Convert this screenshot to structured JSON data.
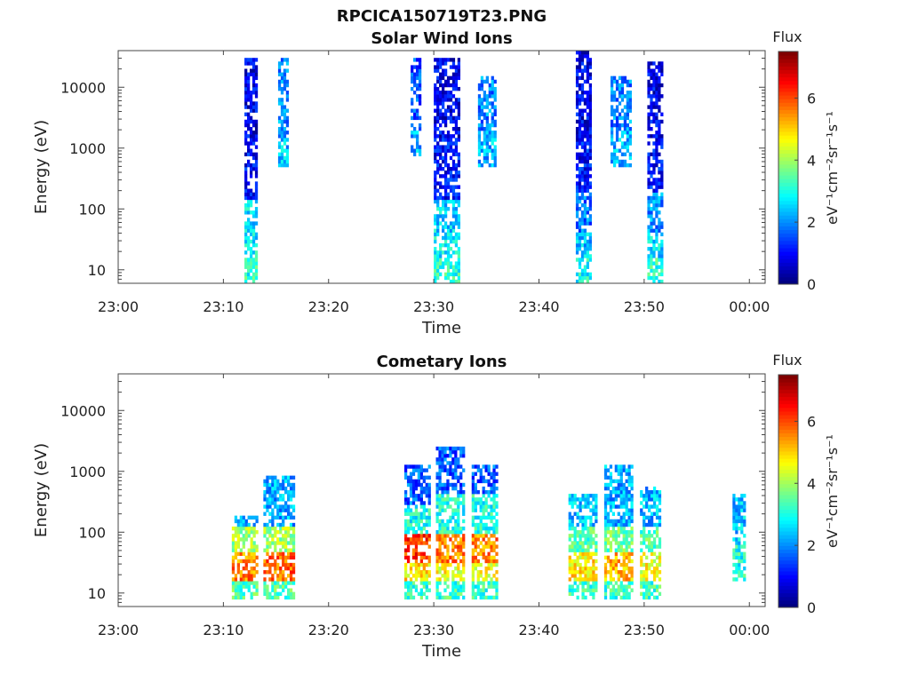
{
  "figure": {
    "title": "RPCICA150719T23.PNG"
  },
  "chart_data": [
    {
      "type": "heatmap",
      "title": "Solar Wind Ions",
      "xlabel": "Time",
      "ylabel": "Energy (eV)",
      "x_ticks": [
        "23:00",
        "23:10",
        "23:20",
        "23:30",
        "23:40",
        "23:50",
        "00:00"
      ],
      "x_range_minutes": [
        0,
        61.5
      ],
      "y_scale": "log",
      "y_ticks": [
        "10",
        "100",
        "1000",
        "10000"
      ],
      "ylim": [
        6,
        40000
      ],
      "colorbar": {
        "title": "Flux",
        "label": "eV⁻¹cm⁻²sr⁻¹s⁻¹",
        "ticks": [
          "0",
          "2",
          "4",
          "6"
        ],
        "range": [
          0,
          7.5
        ],
        "colormap": "jet"
      },
      "bursts": [
        {
          "t": [
            12.0,
            13.2
          ],
          "levels": [
            [
              6,
              15,
              3.1
            ],
            [
              15,
              30,
              2.8
            ],
            [
              30,
              150,
              2.6
            ],
            [
              150,
              1500,
              1.0
            ],
            [
              1500,
              30000,
              0.8
            ]
          ]
        },
        {
          "t": [
            15.2,
            16.2
          ],
          "levels": [
            [
              500,
              1500,
              2.4
            ],
            [
              1500,
              30000,
              1.9
            ]
          ]
        },
        {
          "t": [
            27.8,
            28.8
          ],
          "levels": [
            [
              700,
              2000,
              2.3
            ],
            [
              2000,
              30000,
              1.5
            ]
          ]
        },
        {
          "t": [
            30.0,
            32.4
          ],
          "levels": [
            [
              6,
              15,
              3.1
            ],
            [
              15,
              40,
              2.8
            ],
            [
              40,
              150,
              2.6
            ],
            [
              150,
              1500,
              1.0
            ],
            [
              1500,
              30000,
              0.8
            ]
          ]
        },
        {
          "t": [
            34.2,
            35.8
          ],
          "levels": [
            [
              500,
              2000,
              2.3
            ],
            [
              2000,
              15000,
              1.9
            ]
          ]
        },
        {
          "t": [
            43.5,
            45.0
          ],
          "levels": [
            [
              6,
              15,
              2.9
            ],
            [
              15,
              40,
              2.4
            ],
            [
              40,
              200,
              1.8
            ],
            [
              200,
              1500,
              1.0
            ],
            [
              1500,
              40000,
              0.8
            ]
          ]
        },
        {
          "t": [
            46.8,
            48.8
          ],
          "levels": [
            [
              500,
              2000,
              2.3
            ],
            [
              2000,
              15000,
              1.9
            ]
          ]
        },
        {
          "t": [
            50.3,
            51.8
          ],
          "levels": [
            [
              6,
              15,
              3.1
            ],
            [
              15,
              40,
              2.6
            ],
            [
              40,
              200,
              2.0
            ],
            [
              200,
              1500,
              1.0
            ],
            [
              1500,
              25000,
              0.8
            ]
          ]
        }
      ]
    },
    {
      "type": "heatmap",
      "title": "Cometary Ions",
      "xlabel": "Time",
      "ylabel": "Energy (eV)",
      "x_ticks": [
        "23:00",
        "23:10",
        "23:20",
        "23:30",
        "23:40",
        "23:50",
        "00:00"
      ],
      "x_range_minutes": [
        0,
        61.5
      ],
      "y_scale": "log",
      "y_ticks": [
        "10",
        "100",
        "1000",
        "10000"
      ],
      "ylim": [
        6,
        40000
      ],
      "colorbar": {
        "title": "Flux",
        "label": "eV⁻¹cm⁻²sr⁻¹s⁻¹",
        "ticks": [
          "0",
          "2",
          "4",
          "6"
        ],
        "range": [
          0,
          7.5
        ],
        "colormap": "jet"
      },
      "bursts": [
        {
          "t": [
            10.8,
            13.2
          ],
          "levels": [
            [
              8,
              15,
              3.4
            ],
            [
              15,
              45,
              5.6
            ],
            [
              45,
              120,
              4.0
            ],
            [
              120,
              200,
              2.2
            ]
          ]
        },
        {
          "t": [
            13.8,
            16.8
          ],
          "levels": [
            [
              8,
              15,
              3.4
            ],
            [
              15,
              45,
              5.8
            ],
            [
              45,
              120,
              4.0
            ],
            [
              120,
              800,
              2.2
            ]
          ]
        },
        {
          "t": [
            27.2,
            29.6
          ],
          "levels": [
            [
              8,
              15,
              3.2
            ],
            [
              15,
              30,
              4.8
            ],
            [
              30,
              90,
              6.2
            ],
            [
              90,
              300,
              3.0
            ],
            [
              300,
              1300,
              1.6
            ]
          ]
        },
        {
          "t": [
            30.2,
            32.8
          ],
          "levels": [
            [
              8,
              15,
              3.2
            ],
            [
              15,
              30,
              4.6
            ],
            [
              30,
              90,
              5.6
            ],
            [
              90,
              400,
              3.0
            ],
            [
              400,
              2400,
              1.6
            ]
          ]
        },
        {
          "t": [
            33.6,
            36.0
          ],
          "levels": [
            [
              8,
              15,
              3.2
            ],
            [
              15,
              30,
              4.6
            ],
            [
              30,
              90,
              5.6
            ],
            [
              90,
              400,
              3.0
            ],
            [
              400,
              1300,
              1.6
            ]
          ]
        },
        {
          "t": [
            42.8,
            45.4
          ],
          "levels": [
            [
              8,
              15,
              3.2
            ],
            [
              15,
              45,
              4.8
            ],
            [
              45,
              120,
              3.4
            ],
            [
              120,
              400,
              2.4
            ]
          ]
        },
        {
          "t": [
            46.2,
            48.8
          ],
          "levels": [
            [
              8,
              15,
              3.2
            ],
            [
              15,
              45,
              5.2
            ],
            [
              45,
              120,
              3.6
            ],
            [
              120,
              1300,
              2.2
            ]
          ]
        },
        {
          "t": [
            49.6,
            51.6
          ],
          "levels": [
            [
              8,
              15,
              3.2
            ],
            [
              15,
              45,
              4.6
            ],
            [
              45,
              120,
              3.4
            ],
            [
              120,
              600,
              2.3
            ]
          ]
        },
        {
          "t": [
            58.4,
            59.6
          ],
          "levels": [
            [
              15,
              60,
              3.0
            ],
            [
              60,
              400,
              2.4
            ]
          ]
        }
      ]
    }
  ]
}
